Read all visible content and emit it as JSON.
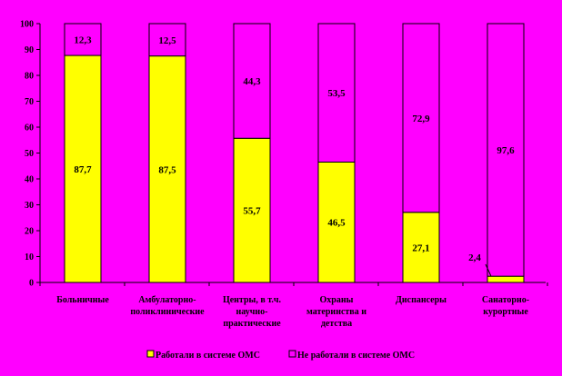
{
  "chart_data": {
    "type": "bar",
    "stacked": true,
    "categories": [
      [
        "Больничные"
      ],
      [
        "Амбулаторно-",
        "поликлинические"
      ],
      [
        "Центры, в т.ч.",
        "научно-",
        "практические"
      ],
      [
        "Охраны",
        "материнства и",
        "детства"
      ],
      [
        "Диспансеры"
      ],
      [
        "Санаторно-",
        "курортные"
      ]
    ],
    "series": [
      {
        "name": "Работали в системе ОМС",
        "values": [
          87.7,
          87.5,
          55.7,
          46.5,
          27.1,
          2.4
        ],
        "labels": [
          "87,7",
          "87,5",
          "55,7",
          "46,5",
          "27,1",
          "2,4"
        ],
        "color": "#FFFF00"
      },
      {
        "name": "Не работали в системе ОМС",
        "values": [
          12.3,
          12.5,
          44.3,
          53.5,
          72.9,
          97.6
        ],
        "labels": [
          "12,3",
          "12,5",
          "44,3",
          "53,5",
          "72,9",
          "97,6"
        ],
        "color": "#FF00FF"
      }
    ],
    "ylim": [
      0,
      100
    ],
    "yticks": [
      0,
      10,
      20,
      30,
      40,
      50,
      60,
      70,
      80,
      90,
      100
    ],
    "legend_position": "bottom",
    "background": "#FF00FF",
    "title": "",
    "xlabel": "",
    "ylabel": ""
  }
}
